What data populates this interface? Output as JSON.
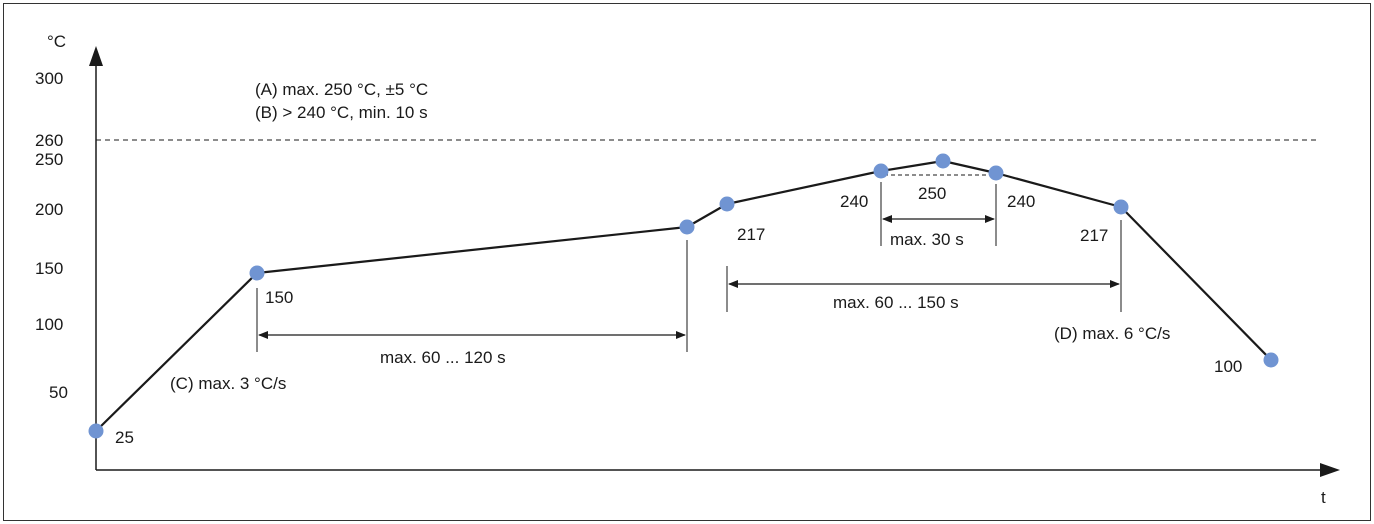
{
  "units": {
    "y": "°C",
    "x": "t"
  },
  "y_ticks": [
    "300",
    "260",
    "250",
    "200",
    "150",
    "100",
    "50"
  ],
  "notes": {
    "a": "(A) max. 250 °C, ±5 °C",
    "b": "(B) > 240 °C, min. 10 s",
    "c": "(C) max. 3 °C/s",
    "d": "(D) max. 6 °C/s"
  },
  "point_labels": {
    "p25": "25",
    "p150": "150",
    "p217_up": "217",
    "p240_left": "240",
    "p250": "250",
    "p240_right": "240",
    "p217_down": "217",
    "p100": "100"
  },
  "intervals": {
    "preheat": "max. 60 ... 120 s",
    "above_217": "max. 60 ... 150 s",
    "peak": "max. 30 s"
  },
  "colors": {
    "point": "#7094d2",
    "line": "#1a1a1a",
    "frame": "#333333"
  }
}
